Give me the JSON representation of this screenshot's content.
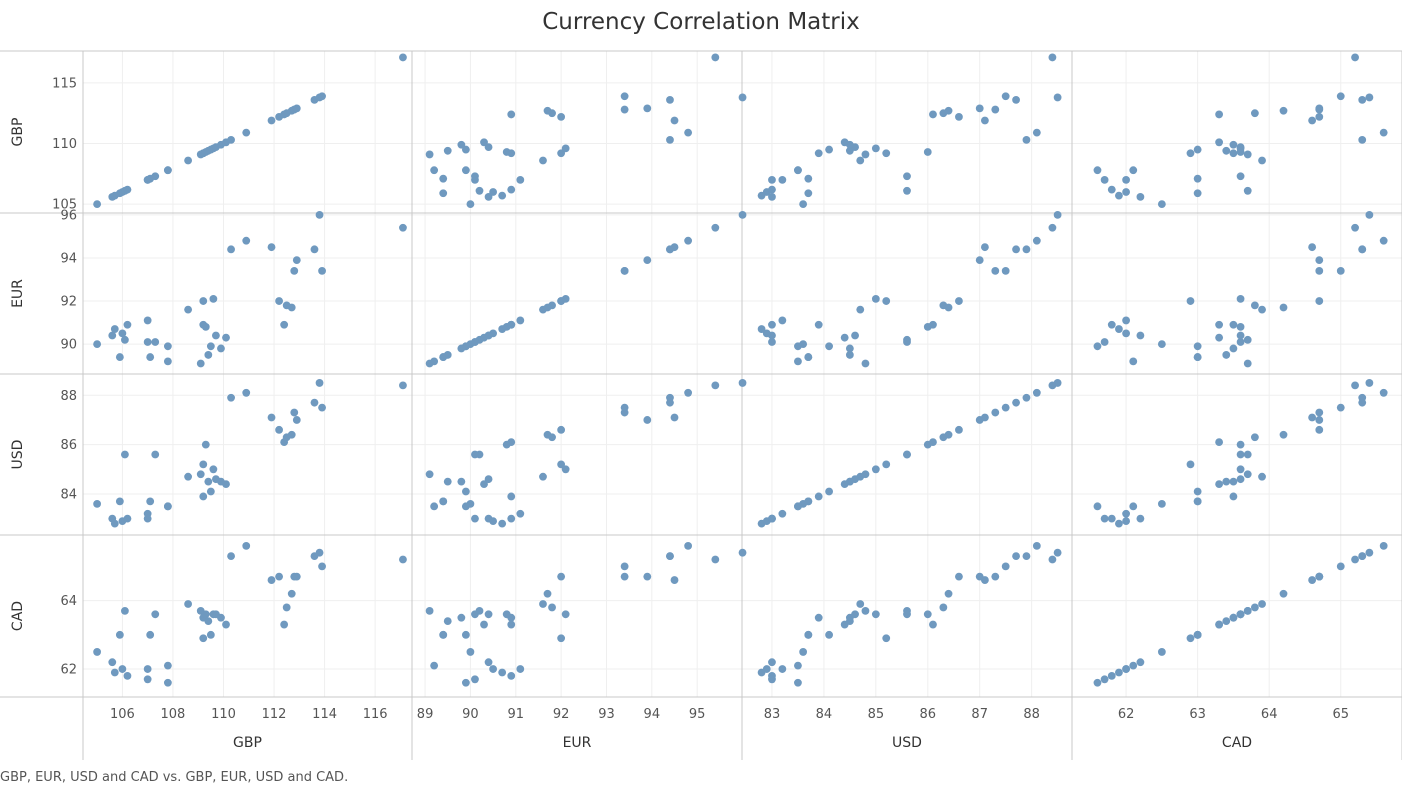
{
  "chart_data": {
    "type": "scatter",
    "title": "Currency Correlation Matrix",
    "caption": "GBP, EUR, USD and CAD vs. GBP, EUR, USD and CAD.",
    "grid": true,
    "point_color": "#6f99bf",
    "variables": [
      {
        "name": "GBP",
        "range": [
          104.6,
          117.3
        ],
        "x_ticks": [
          106,
          108,
          110,
          112,
          114,
          116
        ],
        "y_ticks": [
          105,
          110,
          115
        ]
      },
      {
        "name": "EUR",
        "range": [
          88.8,
          95.9
        ],
        "x_ticks": [
          89,
          90,
          91,
          92,
          93,
          94,
          95
        ],
        "y_ticks": [
          90,
          92,
          94,
          96
        ]
      },
      {
        "name": "USD",
        "range": [
          82.5,
          88.7
        ],
        "x_ticks": [
          83,
          84,
          85,
          86,
          87,
          88
        ],
        "y_ticks": [
          84,
          86,
          88
        ]
      },
      {
        "name": "CAD",
        "range": [
          61.3,
          65.8
        ],
        "x_ticks": [
          62,
          63,
          64,
          65
        ],
        "y_ticks": [
          62,
          64
        ]
      }
    ],
    "observations": [
      {
        "GBP": 105.0,
        "EUR": 90.0,
        "USD": 83.6,
        "CAD": 62.5
      },
      {
        "GBP": 105.6,
        "EUR": 90.4,
        "USD": 83.0,
        "CAD": 62.2
      },
      {
        "GBP": 105.7,
        "EUR": 90.7,
        "USD": 82.8,
        "CAD": 61.9
      },
      {
        "GBP": 105.9,
        "EUR": 89.4,
        "USD": 83.7,
        "CAD": 63.0
      },
      {
        "GBP": 106.0,
        "EUR": 90.5,
        "USD": 82.9,
        "CAD": 62.0
      },
      {
        "GBP": 106.1,
        "EUR": 90.2,
        "USD": 85.6,
        "CAD": 63.7
      },
      {
        "GBP": 106.2,
        "EUR": 90.9,
        "USD": 83.0,
        "CAD": 61.8
      },
      {
        "GBP": 107.0,
        "EUR": 91.1,
        "USD": 83.2,
        "CAD": 62.0
      },
      {
        "GBP": 107.0,
        "EUR": 90.1,
        "USD": 83.0,
        "CAD": 61.7
      },
      {
        "GBP": 107.1,
        "EUR": 89.4,
        "USD": 83.7,
        "CAD": 63.0
      },
      {
        "GBP": 107.3,
        "EUR": 90.1,
        "USD": 85.6,
        "CAD": 63.6
      },
      {
        "GBP": 107.8,
        "EUR": 89.9,
        "USD": 83.5,
        "CAD": 61.6
      },
      {
        "GBP": 107.8,
        "EUR": 89.2,
        "USD": 83.5,
        "CAD": 62.1
      },
      {
        "GBP": 108.6,
        "EUR": 91.6,
        "USD": 84.7,
        "CAD": 63.9
      },
      {
        "GBP": 109.1,
        "EUR": 89.1,
        "USD": 84.8,
        "CAD": 63.7
      },
      {
        "GBP": 109.2,
        "EUR": 92.0,
        "USD": 85.2,
        "CAD": 62.9
      },
      {
        "GBP": 109.2,
        "EUR": 90.9,
        "USD": 83.9,
        "CAD": 63.5
      },
      {
        "GBP": 109.3,
        "EUR": 90.8,
        "USD": 86.0,
        "CAD": 63.6
      },
      {
        "GBP": 109.4,
        "EUR": 89.5,
        "USD": 84.5,
        "CAD": 63.4
      },
      {
        "GBP": 109.5,
        "EUR": 89.9,
        "USD": 84.1,
        "CAD": 63.0
      },
      {
        "GBP": 109.6,
        "EUR": 92.1,
        "USD": 85.0,
        "CAD": 63.6
      },
      {
        "GBP": 109.7,
        "EUR": 90.4,
        "USD": 84.6,
        "CAD": 63.6
      },
      {
        "GBP": 109.9,
        "EUR": 89.8,
        "USD": 84.5,
        "CAD": 63.5
      },
      {
        "GBP": 110.1,
        "EUR": 90.3,
        "USD": 84.4,
        "CAD": 63.3
      },
      {
        "GBP": 110.3,
        "EUR": 94.4,
        "USD": 87.9,
        "CAD": 65.3
      },
      {
        "GBP": 110.9,
        "EUR": 94.8,
        "USD": 88.1,
        "CAD": 65.6
      },
      {
        "GBP": 111.9,
        "EUR": 94.5,
        "USD": 87.1,
        "CAD": 64.6
      },
      {
        "GBP": 112.2,
        "EUR": 92.0,
        "USD": 86.6,
        "CAD": 64.7
      },
      {
        "GBP": 112.4,
        "EUR": 90.9,
        "USD": 86.1,
        "CAD": 63.3
      },
      {
        "GBP": 112.5,
        "EUR": 91.8,
        "USD": 86.3,
        "CAD": 63.8
      },
      {
        "GBP": 112.7,
        "EUR": 91.7,
        "USD": 86.4,
        "CAD": 64.2
      },
      {
        "GBP": 112.8,
        "EUR": 93.4,
        "USD": 87.3,
        "CAD": 64.7
      },
      {
        "GBP": 112.9,
        "EUR": 93.9,
        "USD": 87.0,
        "CAD": 64.7
      },
      {
        "GBP": 113.6,
        "EUR": 94.4,
        "USD": 87.7,
        "CAD": 65.3
      },
      {
        "GBP": 113.8,
        "EUR": 96.0,
        "USD": 88.5,
        "CAD": 65.4
      },
      {
        "GBP": 113.9,
        "EUR": 93.4,
        "USD": 87.5,
        "CAD": 65.0
      },
      {
        "GBP": 117.1,
        "EUR": 95.4,
        "USD": 88.4,
        "CAD": 65.2
      }
    ]
  }
}
